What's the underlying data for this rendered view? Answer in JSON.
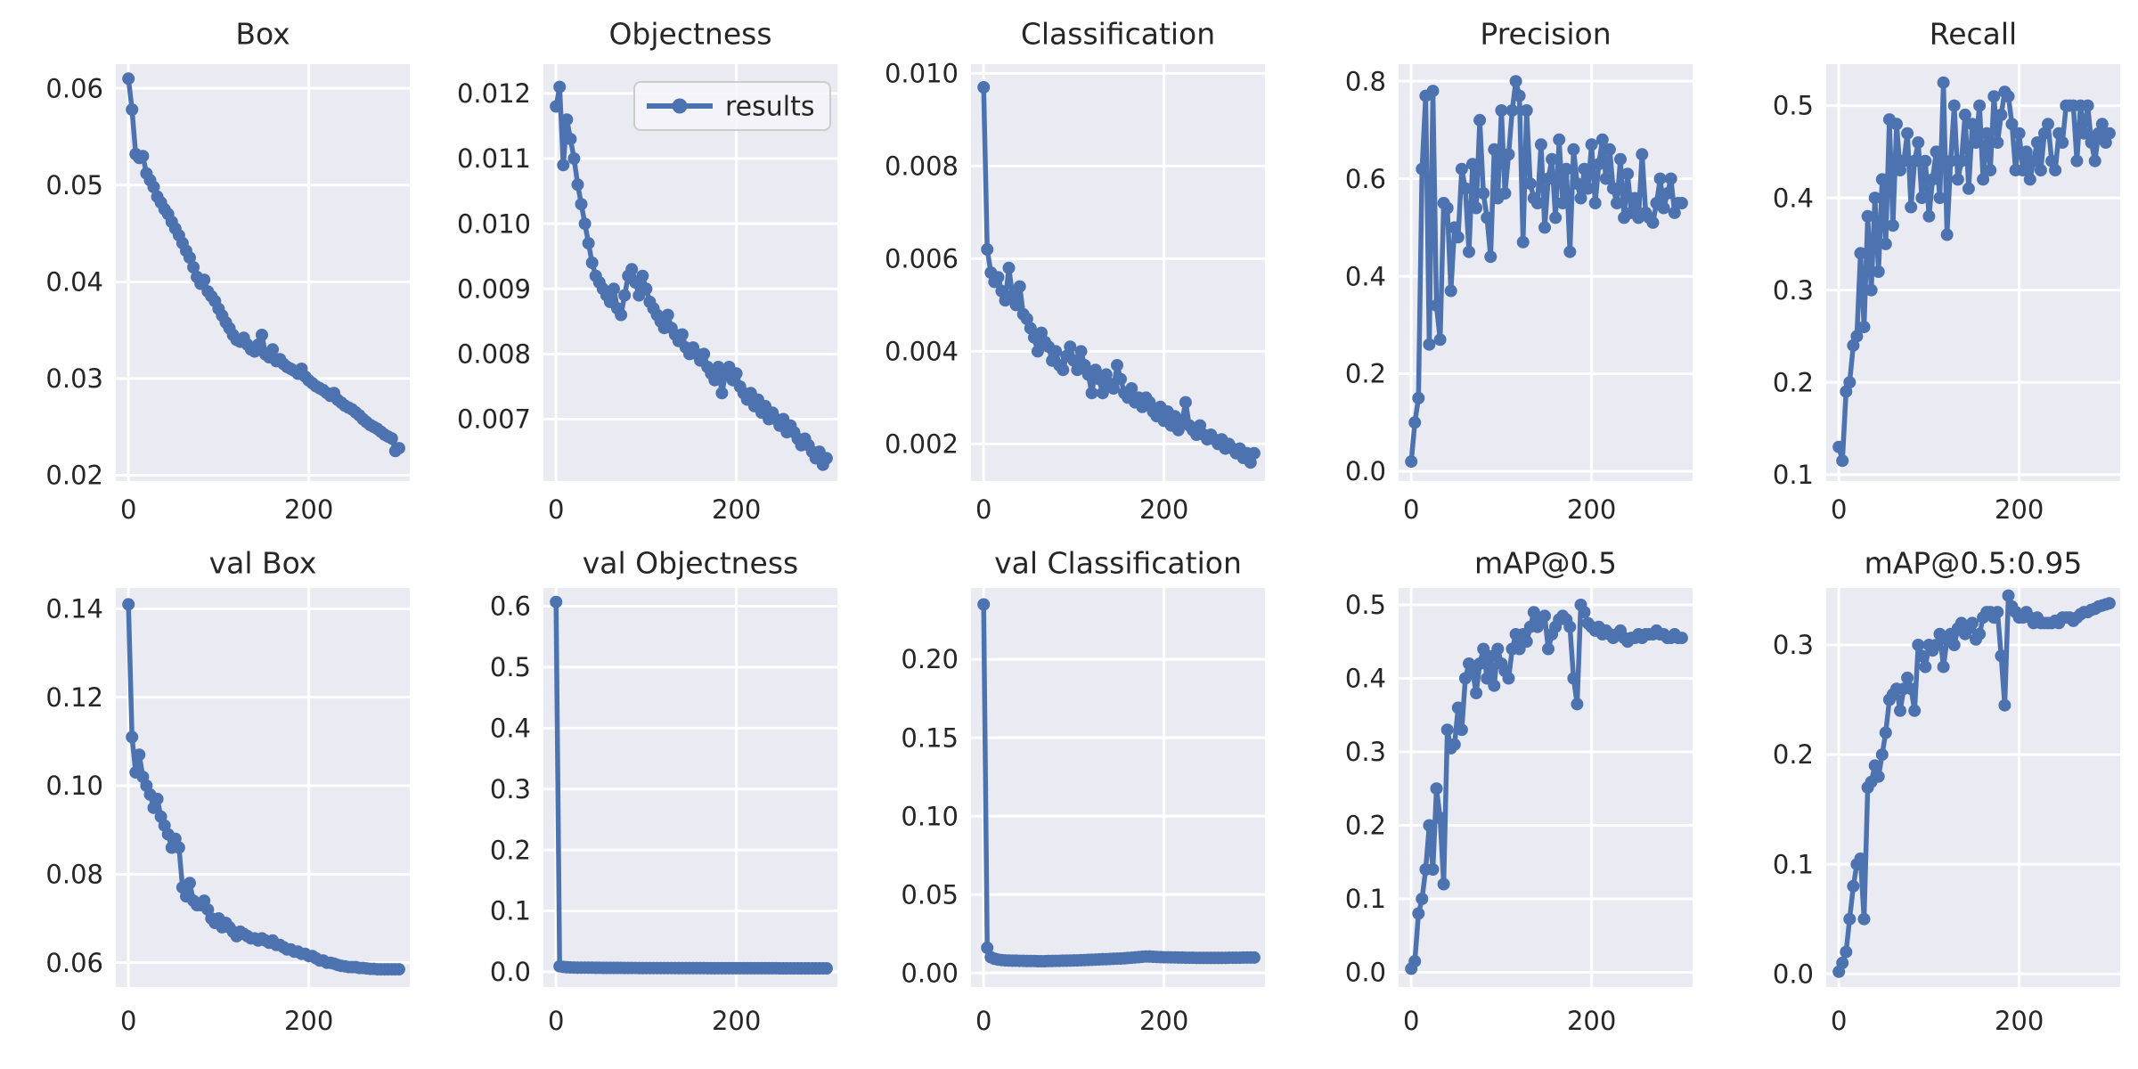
{
  "page": {
    "background_color": "#ffffff",
    "description_labels": {
      "legend_label": "results"
    }
  },
  "styles": {
    "line_color": "#4c72b0",
    "plot_background": "#eaeaf2",
    "grid_color": "#ffffff",
    "text_color": "#262626",
    "legend_border": "#cccccc",
    "legend_background": "#f4f4f9"
  },
  "chart_data": {
    "type": "line",
    "grid": {
      "rows": 2,
      "cols": 5
    },
    "legend": {
      "label": "results",
      "shown_on_subplot": "Objectness",
      "position": "upper-right"
    },
    "marker": "circle",
    "epochs": [
      0,
      4,
      8,
      12,
      16,
      20,
      24,
      28,
      32,
      36,
      40,
      44,
      48,
      52,
      56,
      60,
      64,
      68,
      72,
      76,
      80,
      84,
      88,
      92,
      96,
      100,
      104,
      108,
      112,
      116,
      120,
      124,
      128,
      132,
      136,
      140,
      144,
      148,
      152,
      156,
      160,
      164,
      168,
      172,
      176,
      180,
      184,
      188,
      192,
      196,
      200,
      204,
      208,
      212,
      216,
      220,
      224,
      228,
      232,
      236,
      240,
      244,
      248,
      252,
      256,
      260,
      264,
      268,
      272,
      276,
      280,
      284,
      288,
      292,
      296,
      300
    ],
    "xticks": {
      "values": [
        0,
        200
      ],
      "labels": [
        "0",
        "200"
      ]
    },
    "xlim": [
      -14,
      312
    ],
    "subplots": [
      {
        "title": "Box",
        "ylim": [
          0.0194,
          0.0625
        ],
        "ytick_values": [
          0.02,
          0.03,
          0.04,
          0.05,
          0.06
        ],
        "ytick_labels": [
          "0.02",
          "0.03",
          "0.04",
          "0.05",
          "0.06"
        ],
        "legend": false,
        "values": [
          0.061,
          0.0578,
          0.0532,
          0.0528,
          0.053,
          0.0512,
          0.0505,
          0.0498,
          0.0488,
          0.0482,
          0.0475,
          0.047,
          0.0462,
          0.0455,
          0.0448,
          0.044,
          0.0432,
          0.0425,
          0.0415,
          0.0405,
          0.0398,
          0.0402,
          0.039,
          0.0385,
          0.038,
          0.0372,
          0.0365,
          0.0358,
          0.0352,
          0.0345,
          0.034,
          0.0338,
          0.0342,
          0.0335,
          0.033,
          0.0328,
          0.0335,
          0.0345,
          0.0325,
          0.0322,
          0.033,
          0.0318,
          0.032,
          0.0315,
          0.0312,
          0.031,
          0.0308,
          0.0305,
          0.031,
          0.0302,
          0.0298,
          0.0295,
          0.0292,
          0.029,
          0.0288,
          0.0285,
          0.0282,
          0.0285,
          0.0278,
          0.0275,
          0.0272,
          0.027,
          0.0268,
          0.0265,
          0.0262,
          0.0258,
          0.0255,
          0.0252,
          0.025,
          0.0248,
          0.0245,
          0.0242,
          0.024,
          0.0238,
          0.0225,
          0.0228
        ]
      },
      {
        "title": "Objectness",
        "ylim": [
          0.00605,
          0.01245
        ],
        "ytick_values": [
          0.007,
          0.008,
          0.009,
          0.01,
          0.011,
          0.012
        ],
        "ytick_labels": [
          "0.007",
          "0.008",
          "0.009",
          "0.010",
          "0.011",
          "0.012"
        ],
        "legend": true,
        "values": [
          0.0118,
          0.0121,
          0.0109,
          0.0116,
          0.0113,
          0.011,
          0.0106,
          0.0103,
          0.01,
          0.0097,
          0.0094,
          0.0092,
          0.0091,
          0.009,
          0.0089,
          0.0088,
          0.009,
          0.0087,
          0.0086,
          0.0089,
          0.0092,
          0.0093,
          0.0091,
          0.0089,
          0.0092,
          0.009,
          0.0088,
          0.0087,
          0.0086,
          0.0085,
          0.0084,
          0.0086,
          0.0084,
          0.0083,
          0.0082,
          0.0083,
          0.0081,
          0.008,
          0.0081,
          0.008,
          0.0079,
          0.008,
          0.0078,
          0.0077,
          0.0076,
          0.0078,
          0.0074,
          0.0077,
          0.0078,
          0.0076,
          0.0077,
          0.0075,
          0.0074,
          0.0073,
          0.0074,
          0.0072,
          0.0073,
          0.0071,
          0.0072,
          0.007,
          0.0071,
          0.007,
          0.0069,
          0.007,
          0.0068,
          0.0069,
          0.0068,
          0.0067,
          0.0066,
          0.0067,
          0.0066,
          0.0065,
          0.0064,
          0.0065,
          0.0063,
          0.0064
        ]
      },
      {
        "title": "Classification",
        "ylim": [
          0.0012,
          0.0102
        ],
        "ytick_values": [
          0.002,
          0.004,
          0.006,
          0.008,
          0.01
        ],
        "ytick_labels": [
          "0.002",
          "0.004",
          "0.006",
          "0.008",
          "0.010"
        ],
        "legend": false,
        "values": [
          0.0097,
          0.0062,
          0.0057,
          0.0055,
          0.0056,
          0.0053,
          0.0051,
          0.0058,
          0.0052,
          0.005,
          0.0054,
          0.0048,
          0.0047,
          0.0045,
          0.0043,
          0.004,
          0.0044,
          0.0042,
          0.0041,
          0.0038,
          0.004,
          0.0037,
          0.0036,
          0.0039,
          0.0041,
          0.0038,
          0.0036,
          0.004,
          0.0037,
          0.0035,
          0.0031,
          0.0036,
          0.0034,
          0.0031,
          0.0035,
          0.0033,
          0.0032,
          0.0037,
          0.0034,
          0.0031,
          0.003,
          0.0032,
          0.0029,
          0.003,
          0.0028,
          0.003,
          0.0029,
          0.0027,
          0.0026,
          0.0028,
          0.0025,
          0.0027,
          0.0024,
          0.0026,
          0.0023,
          0.0025,
          0.0029,
          0.0024,
          0.0023,
          0.0022,
          0.0024,
          0.0022,
          0.0021,
          0.0022,
          0.0021,
          0.002,
          0.0021,
          0.0019,
          0.002,
          0.0019,
          0.0018,
          0.0019,
          0.0017,
          0.0018,
          0.0016,
          0.0018
        ]
      },
      {
        "title": "Precision",
        "ylim": [
          -0.02,
          0.835
        ],
        "ytick_values": [
          0.0,
          0.2,
          0.4,
          0.6,
          0.8
        ],
        "ytick_labels": [
          "0.0",
          "0.2",
          "0.4",
          "0.6",
          "0.8"
        ],
        "legend": false,
        "values": [
          0.02,
          0.1,
          0.15,
          0.62,
          0.77,
          0.26,
          0.78,
          0.34,
          0.27,
          0.55,
          0.54,
          0.37,
          0.5,
          0.48,
          0.62,
          0.58,
          0.45,
          0.63,
          0.54,
          0.72,
          0.57,
          0.52,
          0.44,
          0.66,
          0.56,
          0.74,
          0.57,
          0.65,
          0.74,
          0.8,
          0.77,
          0.47,
          0.74,
          0.59,
          0.56,
          0.55,
          0.67,
          0.5,
          0.6,
          0.64,
          0.52,
          0.68,
          0.55,
          0.62,
          0.45,
          0.66,
          0.59,
          0.56,
          0.62,
          0.58,
          0.67,
          0.55,
          0.63,
          0.68,
          0.6,
          0.66,
          0.58,
          0.55,
          0.64,
          0.52,
          0.61,
          0.53,
          0.56,
          0.52,
          0.65,
          0.53,
          0.52,
          0.51,
          0.55,
          0.6,
          0.54,
          0.57,
          0.6,
          0.53,
          0.55,
          0.55
        ]
      },
      {
        "title": "Recall",
        "ylim": [
          0.093,
          0.545
        ],
        "ytick_values": [
          0.1,
          0.2,
          0.3,
          0.4,
          0.5
        ],
        "ytick_labels": [
          "0.1",
          "0.2",
          "0.3",
          "0.4",
          "0.5"
        ],
        "legend": false,
        "values": [
          0.13,
          0.115,
          0.19,
          0.2,
          0.24,
          0.25,
          0.34,
          0.26,
          0.38,
          0.3,
          0.4,
          0.32,
          0.42,
          0.35,
          0.485,
          0.37,
          0.48,
          0.43,
          0.44,
          0.47,
          0.39,
          0.44,
          0.46,
          0.4,
          0.44,
          0.38,
          0.42,
          0.45,
          0.4,
          0.525,
          0.36,
          0.44,
          0.5,
          0.42,
          0.44,
          0.49,
          0.41,
          0.48,
          0.46,
          0.5,
          0.42,
          0.47,
          0.43,
          0.51,
          0.46,
          0.49,
          0.515,
          0.51,
          0.48,
          0.43,
          0.47,
          0.43,
          0.45,
          0.42,
          0.44,
          0.46,
          0.43,
          0.47,
          0.48,
          0.44,
          0.43,
          0.47,
          0.46,
          0.5,
          0.5,
          0.5,
          0.44,
          0.5,
          0.47,
          0.5,
          0.46,
          0.44,
          0.47,
          0.48,
          0.46,
          0.47
        ]
      },
      {
        "title": "val Box",
        "ylim": [
          0.0545,
          0.1447
        ],
        "ytick_values": [
          0.06,
          0.08,
          0.1,
          0.12,
          0.14
        ],
        "ytick_labels": [
          "0.06",
          "0.08",
          "0.10",
          "0.12",
          "0.14"
        ],
        "legend": false,
        "values": [
          0.141,
          0.111,
          0.103,
          0.107,
          0.102,
          0.1,
          0.098,
          0.095,
          0.097,
          0.093,
          0.091,
          0.089,
          0.086,
          0.088,
          0.086,
          0.077,
          0.075,
          0.078,
          0.074,
          0.073,
          0.073,
          0.074,
          0.072,
          0.07,
          0.069,
          0.07,
          0.068,
          0.069,
          0.068,
          0.067,
          0.066,
          0.067,
          0.0665,
          0.066,
          0.0655,
          0.0655,
          0.065,
          0.0655,
          0.065,
          0.0645,
          0.065,
          0.064,
          0.064,
          0.0635,
          0.063,
          0.063,
          0.0625,
          0.0625,
          0.062,
          0.062,
          0.0615,
          0.0615,
          0.061,
          0.0605,
          0.0605,
          0.06,
          0.06,
          0.0598,
          0.0595,
          0.0593,
          0.0592,
          0.059,
          0.059,
          0.059,
          0.0588,
          0.0588,
          0.0587,
          0.0586,
          0.0586,
          0.0585,
          0.0585,
          0.0585,
          0.0585,
          0.0585,
          0.0585,
          0.0585
        ]
      },
      {
        "title": "val Objectness",
        "ylim": [
          -0.025,
          0.63
        ],
        "ytick_values": [
          0.0,
          0.1,
          0.2,
          0.3,
          0.4,
          0.5,
          0.6
        ],
        "ytick_labels": [
          "0.0",
          "0.1",
          "0.2",
          "0.3",
          "0.4",
          "0.5",
          "0.6"
        ],
        "legend": false,
        "values": [
          0.607,
          0.009,
          0.008,
          0.0075,
          0.0072,
          0.007,
          0.0069,
          0.0068,
          0.0068,
          0.0067,
          0.0067,
          0.0066,
          0.0066,
          0.0065,
          0.0065,
          0.0065,
          0.0064,
          0.0064,
          0.0064,
          0.0063,
          0.0063,
          0.0063,
          0.0063,
          0.0062,
          0.0062,
          0.0062,
          0.0062,
          0.0062,
          0.0061,
          0.0061,
          0.0061,
          0.0061,
          0.0061,
          0.0061,
          0.006,
          0.006,
          0.006,
          0.006,
          0.006,
          0.006,
          0.006,
          0.006,
          0.0059,
          0.0059,
          0.0059,
          0.0059,
          0.0059,
          0.0059,
          0.0059,
          0.0059,
          0.0059,
          0.0058,
          0.0058,
          0.0058,
          0.0058,
          0.0058,
          0.0058,
          0.0058,
          0.0058,
          0.0058,
          0.0058,
          0.0058,
          0.0057,
          0.0057,
          0.0057,
          0.0057,
          0.0057,
          0.0057,
          0.0057,
          0.0057,
          0.0057,
          0.0057,
          0.0057,
          0.0057,
          0.0057,
          0.0057
        ]
      },
      {
        "title": "val Classification",
        "ylim": [
          -0.009,
          0.2455
        ],
        "ytick_values": [
          0.0,
          0.05,
          0.1,
          0.15,
          0.2
        ],
        "ytick_labels": [
          "0.00",
          "0.05",
          "0.10",
          "0.15",
          "0.20"
        ],
        "legend": false,
        "values": [
          0.235,
          0.016,
          0.01,
          0.009,
          0.0085,
          0.0082,
          0.008,
          0.0079,
          0.0078,
          0.0078,
          0.0077,
          0.0077,
          0.0076,
          0.0076,
          0.0076,
          0.0075,
          0.0075,
          0.0075,
          0.0076,
          0.0076,
          0.0077,
          0.0077,
          0.0078,
          0.0078,
          0.0079,
          0.008,
          0.008,
          0.0081,
          0.0082,
          0.0083,
          0.0084,
          0.0085,
          0.0086,
          0.0087,
          0.0088,
          0.0089,
          0.009,
          0.0091,
          0.0092,
          0.0093,
          0.0095,
          0.0097,
          0.0099,
          0.0101,
          0.0103,
          0.0105,
          0.0104,
          0.0103,
          0.0102,
          0.0101,
          0.01,
          0.01,
          0.0099,
          0.0099,
          0.0098,
          0.0098,
          0.0097,
          0.0097,
          0.0097,
          0.0096,
          0.0096,
          0.0096,
          0.0096,
          0.0096,
          0.0096,
          0.0096,
          0.0096,
          0.0096,
          0.0097,
          0.0097,
          0.0097,
          0.0097,
          0.0098,
          0.0098,
          0.0098,
          0.0098
        ]
      },
      {
        "title": "mAP@0.5",
        "ylim": [
          -0.02,
          0.523
        ],
        "ytick_values": [
          0.0,
          0.1,
          0.2,
          0.3,
          0.4,
          0.5
        ],
        "ytick_labels": [
          "0.0",
          "0.1",
          "0.2",
          "0.3",
          "0.4",
          "0.5"
        ],
        "legend": false,
        "values": [
          0.005,
          0.015,
          0.08,
          0.1,
          0.14,
          0.2,
          0.14,
          0.25,
          0.21,
          0.12,
          0.33,
          0.305,
          0.31,
          0.36,
          0.33,
          0.4,
          0.42,
          0.41,
          0.38,
          0.42,
          0.44,
          0.4,
          0.43,
          0.39,
          0.44,
          0.42,
          0.41,
          0.4,
          0.44,
          0.46,
          0.44,
          0.46,
          0.45,
          0.47,
          0.49,
          0.47,
          0.48,
          0.485,
          0.44,
          0.46,
          0.47,
          0.48,
          0.485,
          0.48,
          0.47,
          0.4,
          0.365,
          0.5,
          0.49,
          0.475,
          0.47,
          0.465,
          0.47,
          0.46,
          0.465,
          0.46,
          0.455,
          0.46,
          0.465,
          0.455,
          0.45,
          0.455,
          0.455,
          0.46,
          0.455,
          0.46,
          0.46,
          0.46,
          0.465,
          0.46,
          0.46,
          0.455,
          0.455,
          0.46,
          0.455,
          0.455
        ]
      },
      {
        "title": "mAP@0.5:0.95",
        "ylim": [
          -0.012,
          0.352
        ],
        "ytick_values": [
          0.0,
          0.1,
          0.2,
          0.3
        ],
        "ytick_labels": [
          "0.0",
          "0.1",
          "0.2",
          "0.3"
        ],
        "legend": false,
        "values": [
          0.002,
          0.01,
          0.02,
          0.05,
          0.08,
          0.1,
          0.105,
          0.05,
          0.17,
          0.175,
          0.19,
          0.18,
          0.2,
          0.22,
          0.25,
          0.255,
          0.26,
          0.24,
          0.26,
          0.27,
          0.26,
          0.24,
          0.3,
          0.29,
          0.28,
          0.3,
          0.295,
          0.3,
          0.31,
          0.28,
          0.305,
          0.31,
          0.3,
          0.315,
          0.32,
          0.31,
          0.315,
          0.32,
          0.305,
          0.31,
          0.325,
          0.33,
          0.33,
          0.325,
          0.33,
          0.29,
          0.245,
          0.345,
          0.335,
          0.33,
          0.325,
          0.325,
          0.33,
          0.325,
          0.32,
          0.325,
          0.32,
          0.32,
          0.32,
          0.32,
          0.322,
          0.32,
          0.325,
          0.325,
          0.325,
          0.322,
          0.325,
          0.328,
          0.33,
          0.33,
          0.332,
          0.333,
          0.335,
          0.336,
          0.337,
          0.338
        ]
      }
    ]
  }
}
